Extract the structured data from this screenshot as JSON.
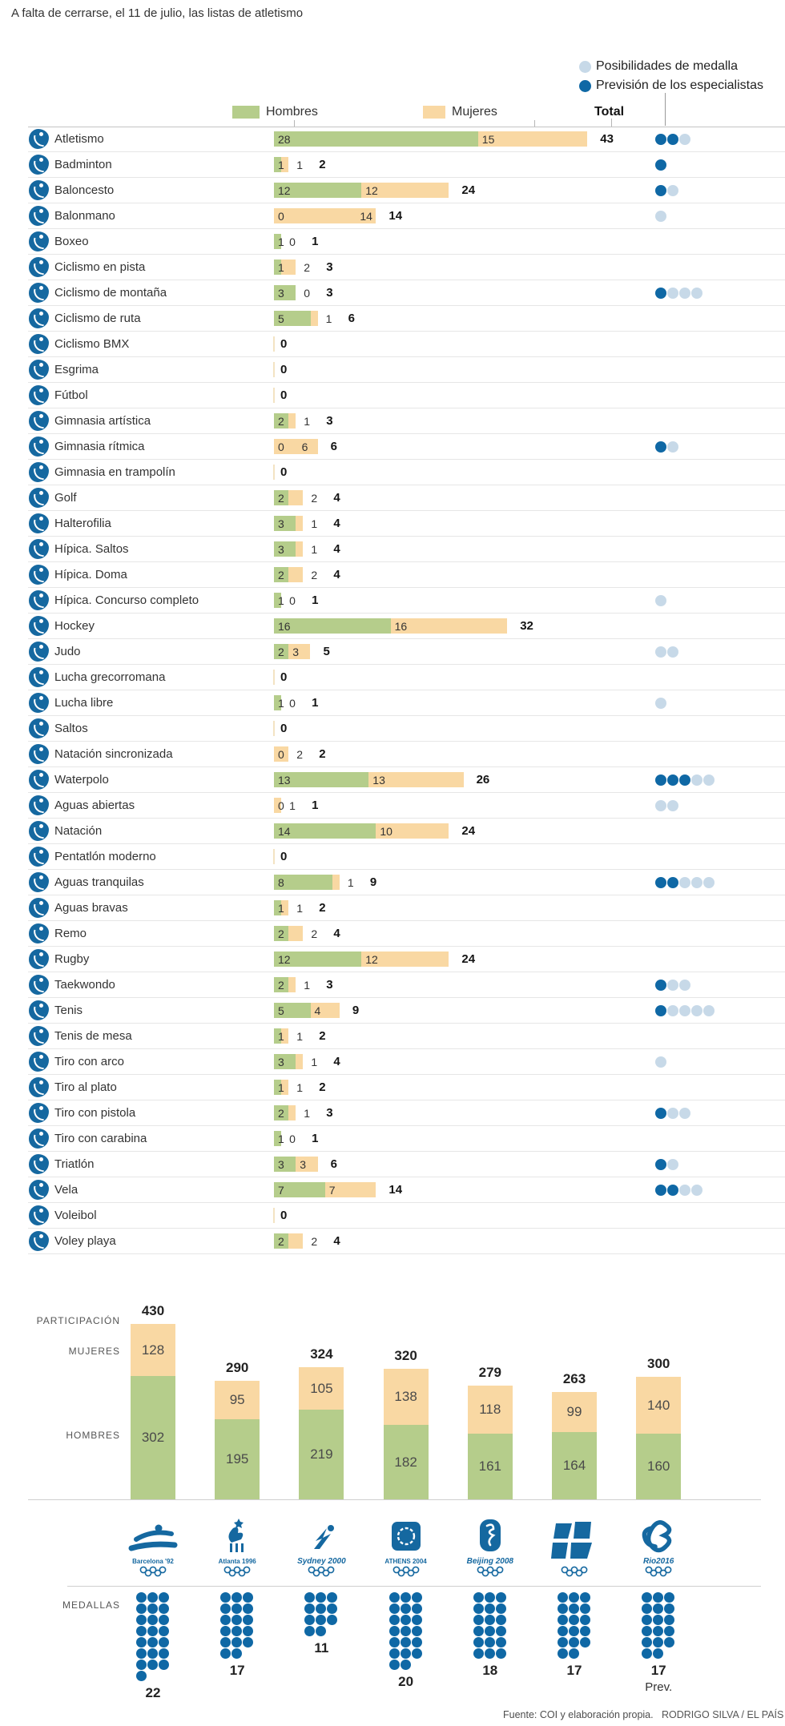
{
  "title": "A falta de cerrarse, el 11 de julio, las listas de atletismo",
  "legend": {
    "light": "Posibilidades de medalla",
    "dark": "Previsión de los especialistas"
  },
  "columns": {
    "hombres": "Hombres",
    "mujeres": "Mujeres",
    "total": "Total"
  },
  "colors": {
    "green": "#b5cd8b",
    "orange": "#f9d8a3",
    "dark_blue": "#0f68a5",
    "light_blue": "#c7d9e8",
    "icon_blue": "#1568a0",
    "zero_tick": "#f3e3c3"
  },
  "bottom_labels": {
    "participacion": "PARTICIPACIÓN",
    "mujeres": "MUJERES",
    "hombres": "HOMBRES",
    "medallas": "MEDALLAS"
  },
  "footer": {
    "source": "Fuente: COI y elaboración propia.",
    "credit": "RODRIGO SILVA / EL PAÍS"
  },
  "chart_data": [
    {
      "type": "bar",
      "orientation": "horizontal",
      "stacked": true,
      "series": [
        "Hombres",
        "Mujeres"
      ],
      "note": "dots: dark = previsión de los especialistas, light = posibilidades de medalla",
      "rows": [
        {
          "sport": "Atletismo",
          "hombres": 28,
          "mujeres": 15,
          "total": 43,
          "dark": 2,
          "light": 1
        },
        {
          "sport": "Badminton",
          "hombres": 1,
          "mujeres": 1,
          "total": 2,
          "dark": 1,
          "light": 0
        },
        {
          "sport": "Baloncesto",
          "hombres": 12,
          "mujeres": 12,
          "total": 24,
          "dark": 1,
          "light": 1
        },
        {
          "sport": "Balonmano",
          "hombres": 0,
          "mujeres": 14,
          "total": 14,
          "dark": 0,
          "light": 1
        },
        {
          "sport": "Boxeo",
          "hombres": 1,
          "mujeres": 0,
          "total": 1,
          "dark": 0,
          "light": 0
        },
        {
          "sport": "Ciclismo en pista",
          "hombres": 1,
          "mujeres": 2,
          "total": 3,
          "dark": 0,
          "light": 0
        },
        {
          "sport": "Ciclismo de montaña",
          "hombres": 3,
          "mujeres": 0,
          "total": 3,
          "dark": 1,
          "light": 3
        },
        {
          "sport": "Ciclismo de ruta",
          "hombres": 5,
          "mujeres": 1,
          "total": 6,
          "dark": 0,
          "light": 0
        },
        {
          "sport": "Ciclismo BMX",
          "hombres": 0,
          "mujeres": 0,
          "total": 0,
          "dark": 0,
          "light": 0
        },
        {
          "sport": "Esgrima",
          "hombres": 0,
          "mujeres": 0,
          "total": 0,
          "dark": 0,
          "light": 0
        },
        {
          "sport": "Fútbol",
          "hombres": 0,
          "mujeres": 0,
          "total": 0,
          "dark": 0,
          "light": 0
        },
        {
          "sport": "Gimnasia artística",
          "hombres": 2,
          "mujeres": 1,
          "total": 3,
          "dark": 0,
          "light": 0
        },
        {
          "sport": "Gimnasia rítmica",
          "hombres": 0,
          "mujeres": 6,
          "total": 6,
          "dark": 1,
          "light": 1
        },
        {
          "sport": "Gimnasia en trampolín",
          "hombres": 0,
          "mujeres": 0,
          "total": 0,
          "dark": 0,
          "light": 0
        },
        {
          "sport": "Golf",
          "hombres": 2,
          "mujeres": 2,
          "total": 4,
          "dark": 0,
          "light": 0
        },
        {
          "sport": "Halterofilia",
          "hombres": 3,
          "mujeres": 1,
          "total": 4,
          "dark": 0,
          "light": 0
        },
        {
          "sport": "Hípica. Saltos",
          "hombres": 3,
          "mujeres": 1,
          "total": 4,
          "dark": 0,
          "light": 0
        },
        {
          "sport": "Hípica. Doma",
          "hombres": 2,
          "mujeres": 2,
          "total": 4,
          "dark": 0,
          "light": 0
        },
        {
          "sport": "Hípica. Concurso completo",
          "hombres": 1,
          "mujeres": 0,
          "total": 1,
          "dark": 0,
          "light": 1
        },
        {
          "sport": "Hockey",
          "hombres": 16,
          "mujeres": 16,
          "total": 32,
          "dark": 0,
          "light": 0
        },
        {
          "sport": "Judo",
          "hombres": 2,
          "mujeres": 3,
          "total": 5,
          "dark": 0,
          "light": 2
        },
        {
          "sport": "Lucha grecorromana",
          "hombres": 0,
          "mujeres": 0,
          "total": 0,
          "dark": 0,
          "light": 0
        },
        {
          "sport": "Lucha libre",
          "hombres": 1,
          "mujeres": 0,
          "total": 1,
          "dark": 0,
          "light": 1
        },
        {
          "sport": "Saltos",
          "hombres": 0,
          "mujeres": 0,
          "total": 0,
          "dark": 0,
          "light": 0
        },
        {
          "sport": "Natación sincronizada",
          "hombres": 0,
          "mujeres": 2,
          "total": 2,
          "dark": 0,
          "light": 0
        },
        {
          "sport": "Waterpolo",
          "hombres": 13,
          "mujeres": 13,
          "total": 26,
          "dark": 3,
          "light": 2
        },
        {
          "sport": "Aguas abiertas",
          "hombres": 0,
          "mujeres": 1,
          "total": 1,
          "dark": 0,
          "light": 2
        },
        {
          "sport": "Natación",
          "hombres": 14,
          "mujeres": 10,
          "total": 24,
          "dark": 0,
          "light": 0
        },
        {
          "sport": "Pentatlón moderno",
          "hombres": 0,
          "mujeres": 0,
          "total": 0,
          "dark": 0,
          "light": 0
        },
        {
          "sport": "Aguas tranquilas",
          "hombres": 8,
          "mujeres": 1,
          "total": 9,
          "dark": 2,
          "light": 3
        },
        {
          "sport": "Aguas bravas",
          "hombres": 1,
          "mujeres": 1,
          "total": 2,
          "dark": 0,
          "light": 0
        },
        {
          "sport": "Remo",
          "hombres": 2,
          "mujeres": 2,
          "total": 4,
          "dark": 0,
          "light": 0
        },
        {
          "sport": "Rugby",
          "hombres": 12,
          "mujeres": 12,
          "total": 24,
          "dark": 0,
          "light": 0
        },
        {
          "sport": "Taekwondo",
          "hombres": 2,
          "mujeres": 1,
          "total": 3,
          "dark": 1,
          "light": 2
        },
        {
          "sport": "Tenis",
          "hombres": 5,
          "mujeres": 4,
          "total": 9,
          "dark": 1,
          "light": 4
        },
        {
          "sport": "Tenis de mesa",
          "hombres": 1,
          "mujeres": 1,
          "total": 2,
          "dark": 0,
          "light": 0
        },
        {
          "sport": "Tiro con arco",
          "hombres": 3,
          "mujeres": 1,
          "total": 4,
          "dark": 0,
          "light": 1
        },
        {
          "sport": "Tiro al plato",
          "hombres": 1,
          "mujeres": 1,
          "total": 2,
          "dark": 0,
          "light": 0
        },
        {
          "sport": "Tiro con pistola",
          "hombres": 2,
          "mujeres": 1,
          "total": 3,
          "dark": 1,
          "light": 2
        },
        {
          "sport": "Tiro con carabina",
          "hombres": 1,
          "mujeres": 0,
          "total": 1,
          "dark": 0,
          "light": 0
        },
        {
          "sport": "Triatlón",
          "hombres": 3,
          "mujeres": 3,
          "total": 6,
          "dark": 1,
          "light": 1
        },
        {
          "sport": "Vela",
          "hombres": 7,
          "mujeres": 7,
          "total": 14,
          "dark": 2,
          "light": 2
        },
        {
          "sport": "Voleibol",
          "hombres": 0,
          "mujeres": 0,
          "total": 0,
          "dark": 0,
          "light": 0
        },
        {
          "sport": "Voley playa",
          "hombres": 2,
          "mujeres": 2,
          "total": 4,
          "dark": 0,
          "light": 0
        }
      ]
    },
    {
      "type": "bar",
      "stacked": true,
      "title": "Participación por Juegos Olímpicos",
      "categories": [
        "Barcelona '92",
        "Atlanta 1996",
        "Sydney 2000",
        "Athens 2004",
        "Beijing 2008",
        "London 2012",
        "Rio 2016"
      ],
      "logo_labels": [
        "Barcelona '92",
        "Atlanta 1996",
        "Sydney 2000",
        "ATHENS 2004",
        "Beijing 2008",
        "",
        "Rio2016"
      ],
      "series": [
        {
          "name": "Hombres",
          "values": [
            302,
            195,
            219,
            182,
            161,
            164,
            160
          ]
        },
        {
          "name": "Mujeres",
          "values": [
            128,
            95,
            105,
            138,
            118,
            99,
            140
          ]
        }
      ],
      "totals": [
        430,
        290,
        324,
        320,
        279,
        263,
        300
      ],
      "medals": [
        22,
        17,
        11,
        20,
        18,
        17,
        17
      ],
      "medals_last_note": "Prev."
    }
  ]
}
